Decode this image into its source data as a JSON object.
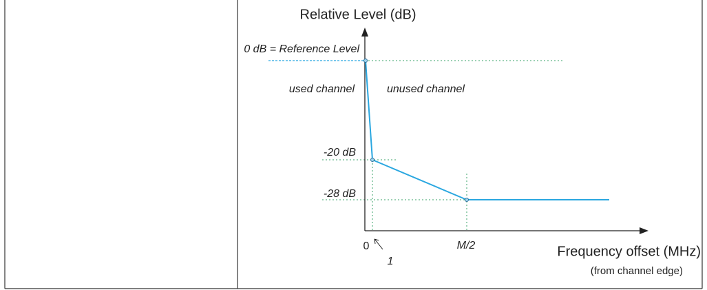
{
  "diagram": {
    "y_axis_label": "Relative Level (dB)",
    "reference_label": "0 dB = Reference Level",
    "used_channel": "used channel",
    "unused_channel": "unused channel",
    "level_labels": [
      "-20 dB",
      "-28 dB"
    ],
    "x_axis_label": "Frequency offset (MHz)",
    "x_axis_sublabel": "(from channel edge)",
    "x_marks": [
      "0",
      "1",
      "M/2"
    ]
  }
}
